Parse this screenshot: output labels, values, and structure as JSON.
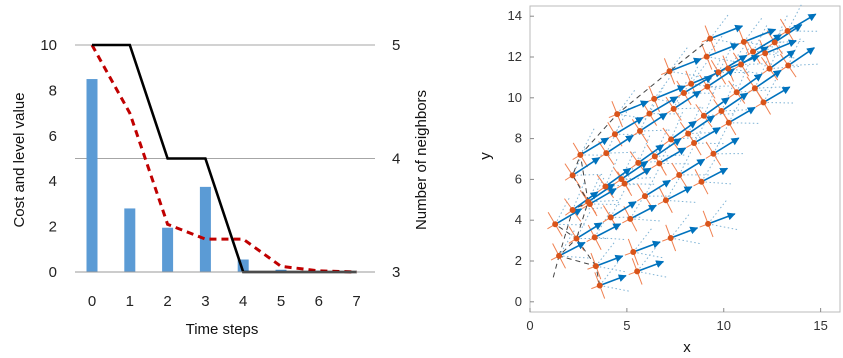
{
  "chart_data": [
    {
      "type": "bar",
      "title": "",
      "xlabel": "Time steps",
      "ylabel": "Cost and level value",
      "y2label": "Number of neighbors",
      "categories": [
        "0",
        "1",
        "2",
        "3",
        "4",
        "5",
        "6",
        "7"
      ],
      "ylim": [
        0,
        10
      ],
      "yticks": [
        "0",
        "2",
        "4",
        "6",
        "8",
        "10"
      ],
      "y2lim": [
        3,
        5
      ],
      "y2ticks": [
        "3",
        "4",
        "5"
      ],
      "grid": "horizontal lines at y2 ticks",
      "bars": {
        "color": "#5b9bd5",
        "values": [
          8.5,
          2.8,
          1.95,
          3.75,
          0.55,
          0.1,
          0.05,
          0
        ]
      },
      "dashed_line": {
        "color": "#c00000",
        "values": [
          10,
          7.0,
          2.1,
          1.45,
          1.45,
          0.25,
          0.05,
          0
        ]
      },
      "step_line": {
        "color": "#000000",
        "axis": "y2",
        "points": [
          [
            0,
            5
          ],
          [
            1,
            5
          ],
          [
            2,
            4
          ],
          [
            3,
            4
          ],
          [
            4,
            3
          ],
          [
            5,
            3
          ],
          [
            6,
            3
          ],
          [
            7,
            3
          ]
        ]
      }
    },
    {
      "type": "scatter",
      "title": "",
      "xlabel": "x",
      "ylabel": "y",
      "xlim": [
        0,
        16
      ],
      "ylim": [
        -0.5,
        14.5
      ],
      "xticks": [
        "0",
        "5",
        "10",
        "15"
      ],
      "yticks": [
        "0",
        "2",
        "4",
        "6",
        "8",
        "10",
        "12",
        "14"
      ],
      "point_color": "#d9541a",
      "arrow_color": "#0072bd",
      "rows": [
        {
          "base": [
            3.6,
            0.8
          ],
          "dir": [
            0.56,
            0.2
          ],
          "n": 2
        },
        {
          "base": [
            3.4,
            1.75
          ],
          "dir": [
            0.56,
            0.2
          ],
          "n": 4
        },
        {
          "base": [
            1.5,
            2.25
          ],
          "dir": [
            0.87,
            0.43
          ],
          "n": 5
        },
        {
          "base": [
            2.4,
            3.1
          ],
          "dir": [
            0.85,
            0.5
          ],
          "n": 5
        },
        {
          "base": [
            1.3,
            3.8
          ],
          "dir": [
            0.9,
            0.5
          ],
          "n": 7
        },
        {
          "base": [
            2.2,
            4.5
          ],
          "dir": [
            0.88,
            0.6
          ],
          "n": 7
        },
        {
          "base": [
            3.0,
            4.9
          ],
          "dir": [
            0.85,
            0.55
          ],
          "n": 7
        },
        {
          "base": [
            2.2,
            6.2
          ],
          "dir": [
            0.88,
            0.55
          ],
          "n": 7
        },
        {
          "base": [
            2.6,
            7.2
          ],
          "dir": [
            0.88,
            0.5
          ],
          "n": 7
        },
        {
          "base": [
            4.5,
            9.2
          ],
          "dir": [
            0.82,
            0.32
          ],
          "n": 5
        },
        {
          "base": [
            7.2,
            11.3
          ],
          "dir": [
            0.8,
            0.3
          ],
          "n": 3
        },
        {
          "base": [
            9.3,
            12.9
          ],
          "dir": [
            0.75,
            0.28
          ],
          "n": 1
        }
      ]
    }
  ]
}
